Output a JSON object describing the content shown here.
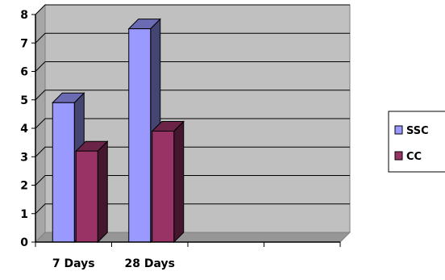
{
  "chart_data": {
    "type": "bar",
    "categories": [
      "7 Days",
      "28 Days",
      "",
      ""
    ],
    "series": [
      {
        "name": "SSC",
        "values": [
          4.9,
          7.5,
          null,
          null
        ],
        "color": "#9999ff"
      },
      {
        "name": "CC",
        "values": [
          3.2,
          3.9,
          null,
          null
        ],
        "color": "#993366"
      }
    ],
    "y_ticks": [
      "0",
      "1",
      "2",
      "3",
      "4",
      "5",
      "6",
      "7",
      "8"
    ],
    "ylim": [
      0,
      8
    ],
    "grid": true,
    "legend_position": "right",
    "plot_background": "#c0c0c0"
  }
}
